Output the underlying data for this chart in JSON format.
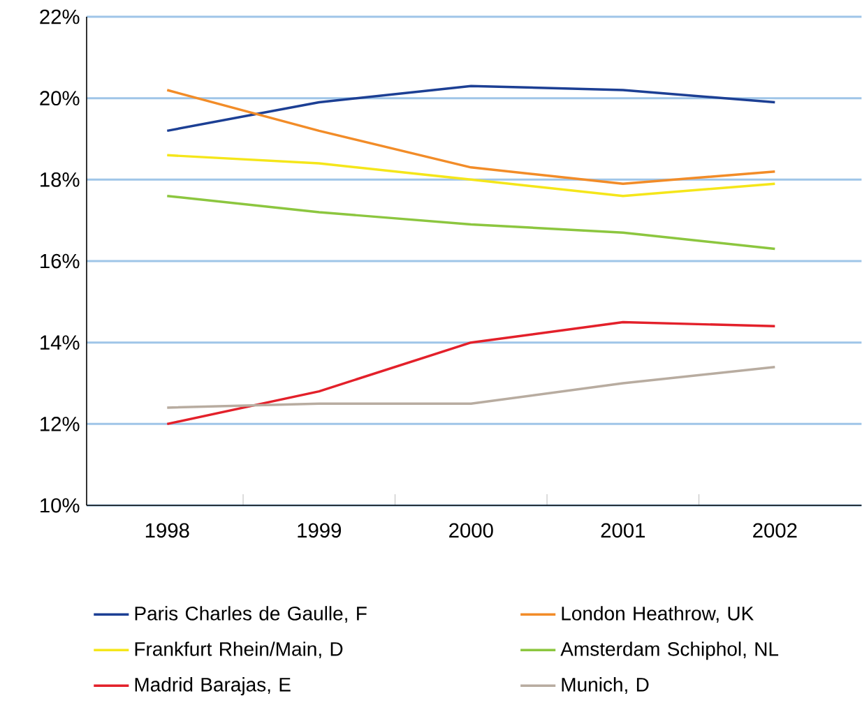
{
  "chart_data": {
    "type": "line",
    "categories": [
      "1998",
      "1999",
      "2000",
      "2001",
      "2002"
    ],
    "ylim": [
      10,
      22
    ],
    "yticks": [
      {
        "value": 10,
        "label": "10%"
      },
      {
        "value": 12,
        "label": "12%"
      },
      {
        "value": 14,
        "label": "14%"
      },
      {
        "value": 16,
        "label": "16%"
      },
      {
        "value": 18,
        "label": "18%"
      },
      {
        "value": 20,
        "label": "20%"
      },
      {
        "value": 22,
        "label": "22%"
      }
    ],
    "grid": "y",
    "legend": "bottom",
    "marker": "none",
    "line_style": "solid",
    "series": [
      {
        "name": "Paris Charles de Gaulle, F",
        "color": "#1c3f94",
        "values": [
          19.2,
          19.9,
          20.3,
          20.2,
          19.9
        ]
      },
      {
        "name": "London Heathrow, UK",
        "color": "#f28c28",
        "values": [
          20.2,
          19.2,
          18.3,
          17.9,
          18.2
        ]
      },
      {
        "name": "Frankfurt Rhein/Main, D",
        "color": "#f5e61a",
        "values": [
          18.6,
          18.4,
          18.0,
          17.6,
          17.9
        ]
      },
      {
        "name": "Amsterdam Schiphol, NL",
        "color": "#8cc63f",
        "values": [
          17.6,
          17.2,
          16.9,
          16.7,
          16.3
        ]
      },
      {
        "name": "Madrid Barajas, E",
        "color": "#e3202a",
        "values": [
          12.0,
          12.8,
          14.0,
          14.5,
          14.4
        ]
      },
      {
        "name": "Munich, D",
        "color": "#b8aca0",
        "values": [
          12.4,
          12.5,
          12.5,
          13.0,
          13.4
        ]
      }
    ]
  }
}
